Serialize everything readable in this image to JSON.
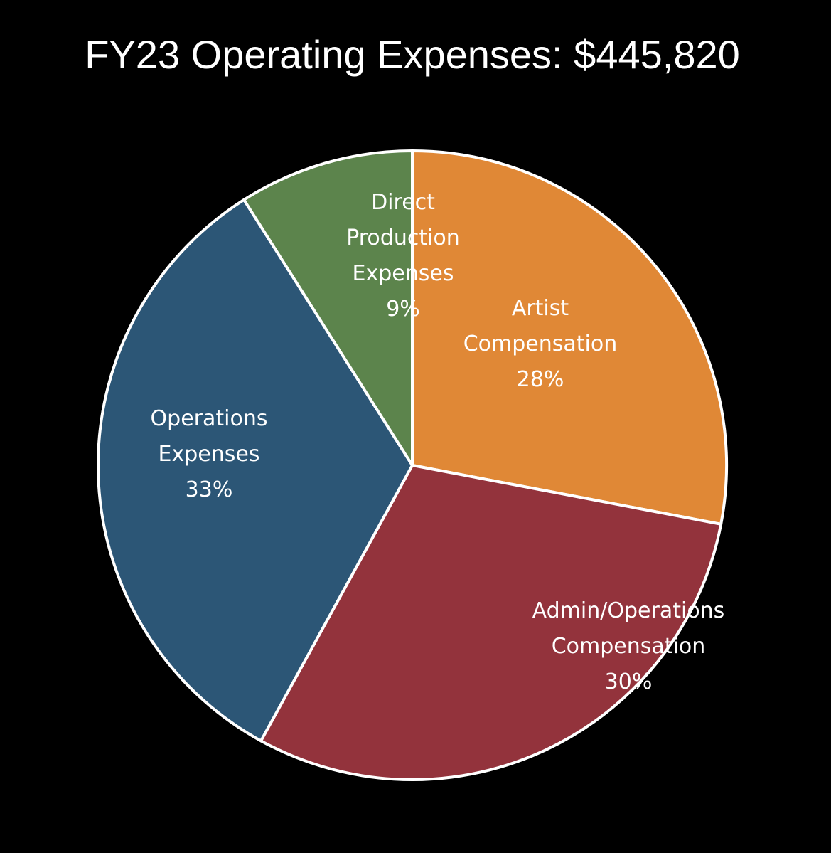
{
  "chart_data": {
    "type": "pie",
    "title": "FY23 Operating Expenses: $445,820",
    "start_angle_deg": 0,
    "direction": "clockwise",
    "slices": [
      {
        "name": "Artist Compensation",
        "label_lines": [
          "Artist",
          "Compensation",
          "28%"
        ],
        "percent": 28,
        "color": "#E08836"
      },
      {
        "name": "Admin/Operations Compensation",
        "label_lines": [
          "Admin/Operations",
          "Compensation",
          "30%"
        ],
        "percent": 30,
        "color": "#93333C"
      },
      {
        "name": "Operations Expenses",
        "label_lines": [
          "Operations",
          "Expenses",
          "33%"
        ],
        "percent": 33,
        "color": "#2C5676"
      },
      {
        "name": "Direct Production Expenses",
        "label_lines": [
          "Direct",
          "Production",
          "Expenses",
          "9%"
        ],
        "percent": 9,
        "color": "#5C844C"
      }
    ],
    "edge_color": "#FFFFFF",
    "background": "#000000"
  }
}
